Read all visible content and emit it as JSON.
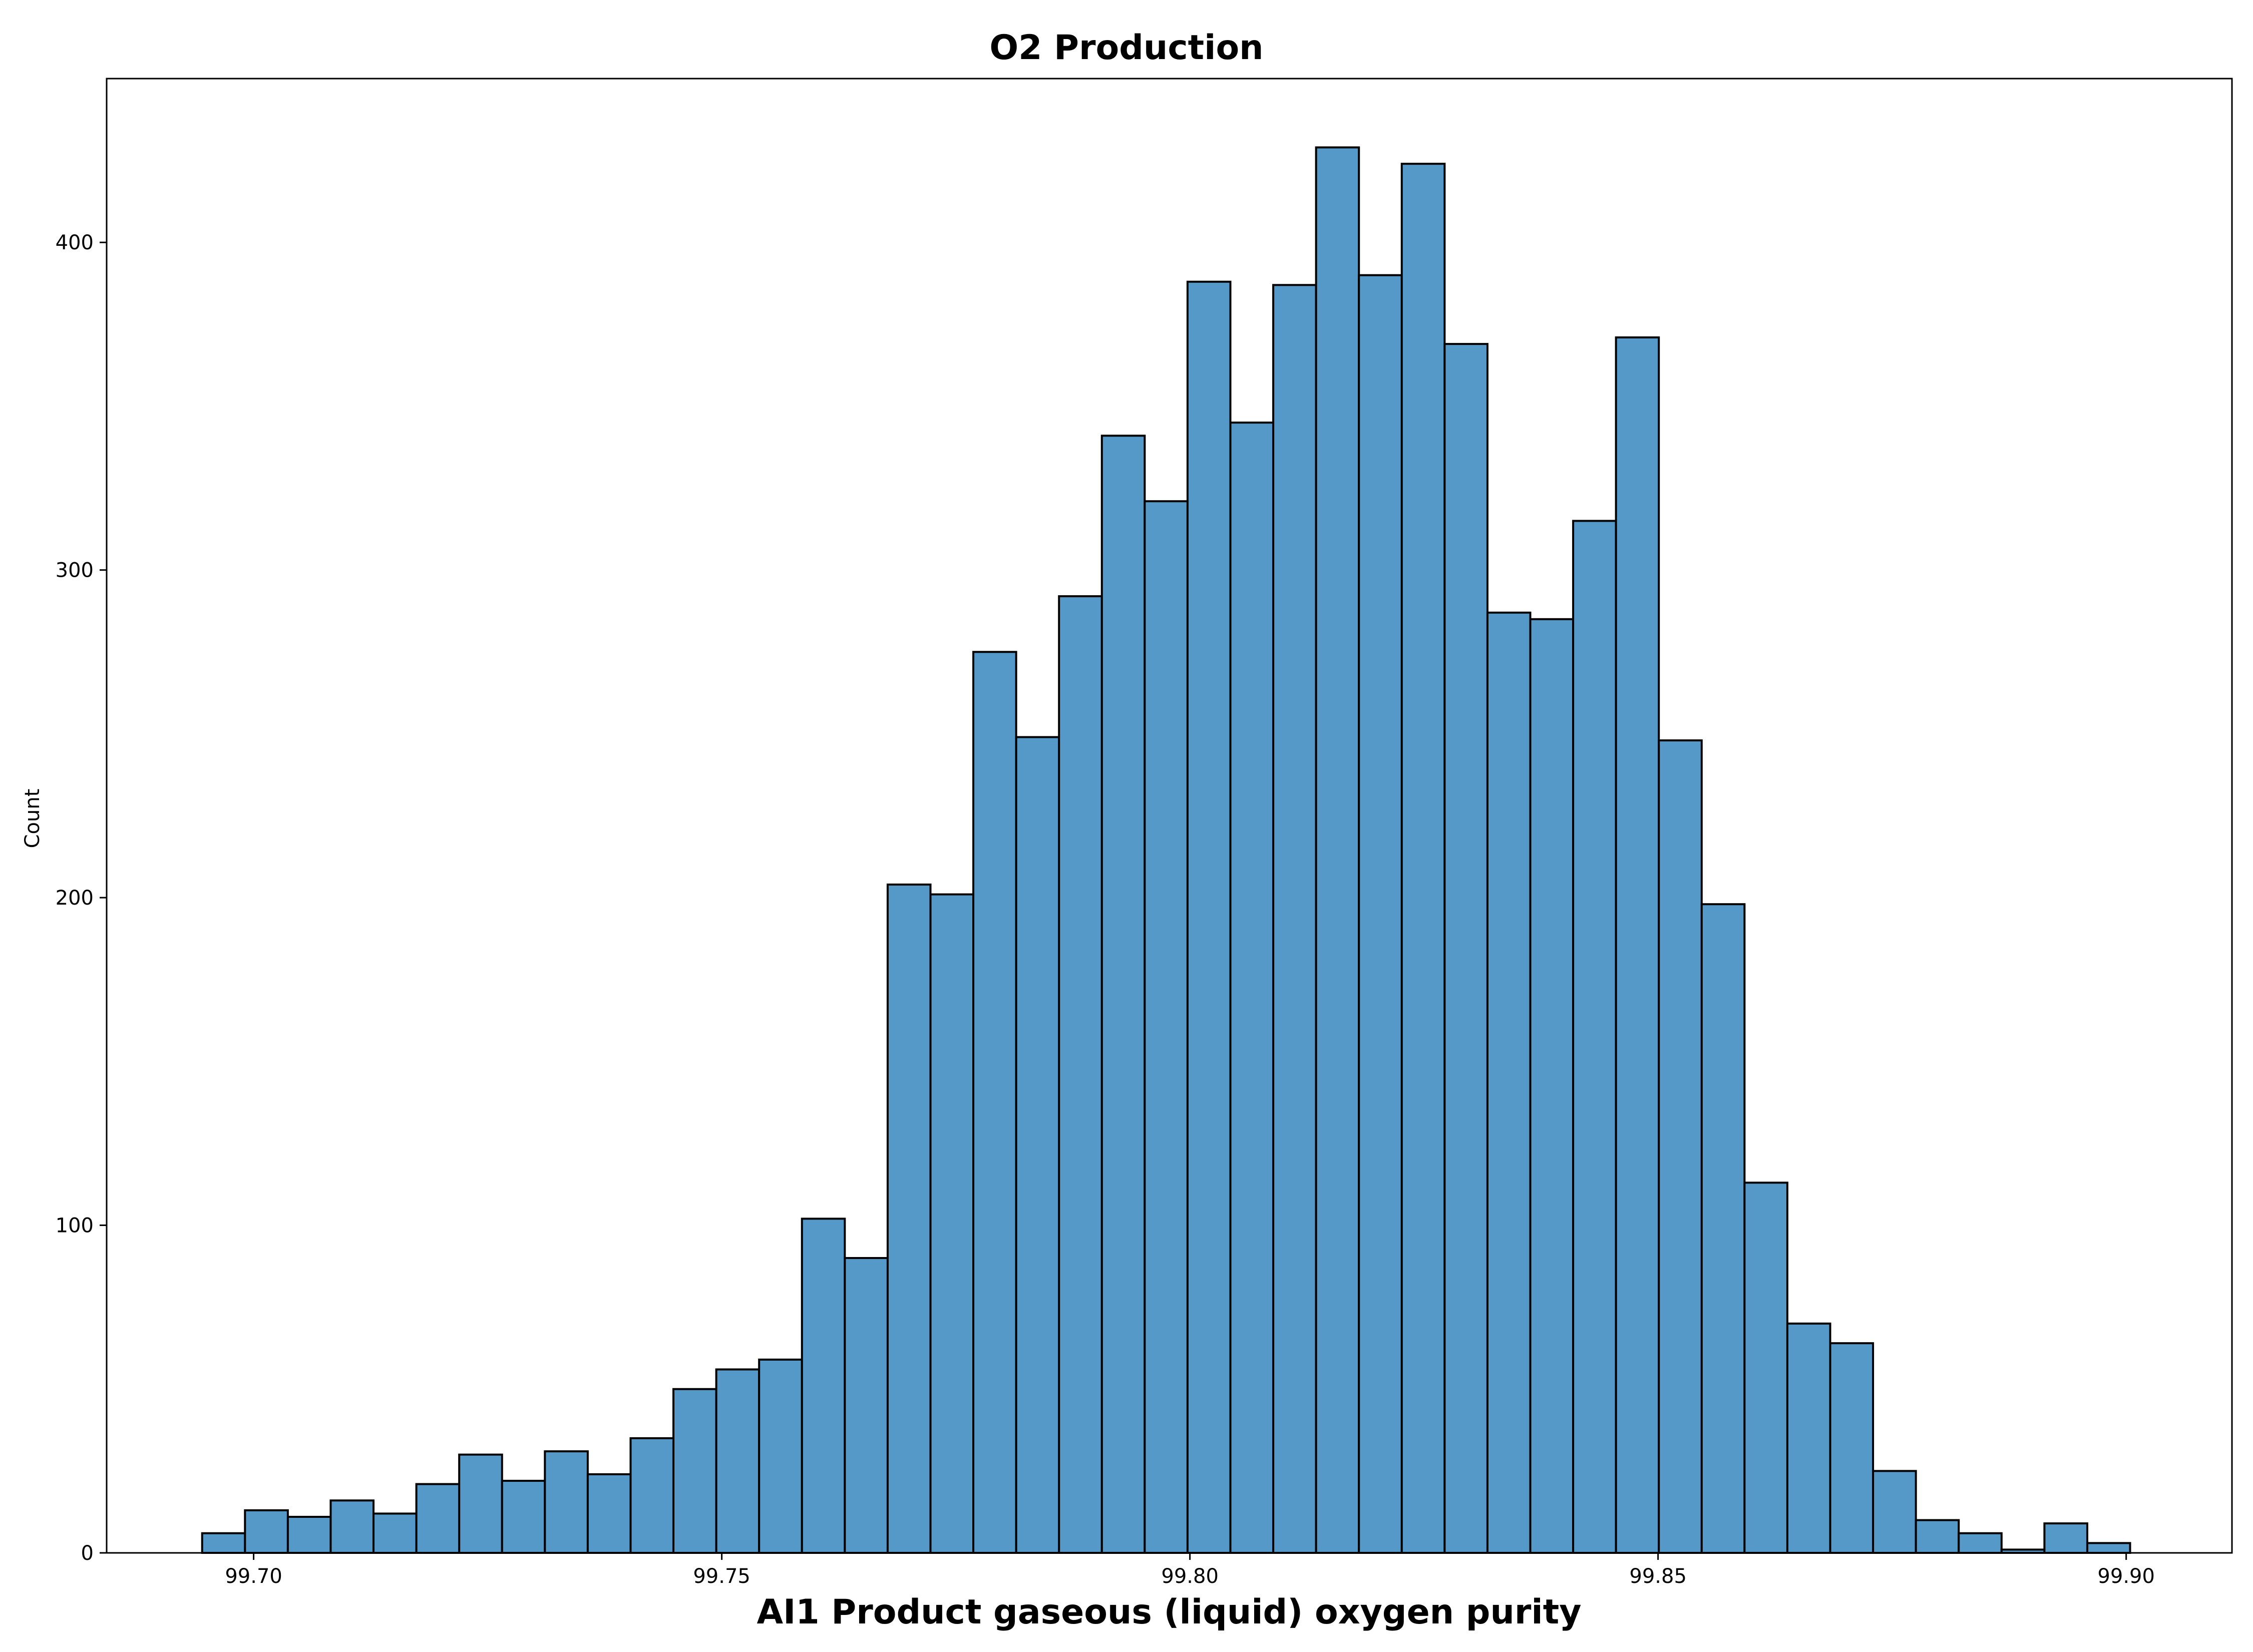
{
  "chart_data": {
    "type": "bar",
    "title": "O2 Production",
    "xlabel": "AI1 Product gaseous (liquid) oxygen purity",
    "ylabel": "Count",
    "xlim": [
      99.6843,
      99.9113
    ],
    "ylim": [
      0,
      450
    ],
    "bin_start": 99.6945,
    "bin_width": 0.004576,
    "values": [
      6,
      13,
      11,
      16,
      12,
      21,
      30,
      22,
      31,
      24,
      35,
      50,
      56,
      59,
      102,
      90,
      204,
      201,
      275,
      249,
      292,
      341,
      321,
      388,
      345,
      387,
      429,
      390,
      424,
      369,
      287,
      285,
      315,
      371,
      248,
      198,
      113,
      70,
      64,
      25,
      10,
      6,
      1,
      9,
      3
    ],
    "x_ticks": [
      {
        "value": 99.7,
        "label": "99.70"
      },
      {
        "value": 99.75,
        "label": "99.75"
      },
      {
        "value": 99.8,
        "label": "99.80"
      },
      {
        "value": 99.85,
        "label": "99.85"
      },
      {
        "value": 99.9,
        "label": "99.90"
      }
    ],
    "y_ticks": [
      {
        "value": 0,
        "label": "0"
      },
      {
        "value": 100,
        "label": "100"
      },
      {
        "value": 200,
        "label": "200"
      },
      {
        "value": 300,
        "label": "300"
      },
      {
        "value": 400,
        "label": "400"
      }
    ],
    "bar_color": "#5599c8",
    "edge_color": "#000000",
    "grid": false,
    "legend": false
  }
}
